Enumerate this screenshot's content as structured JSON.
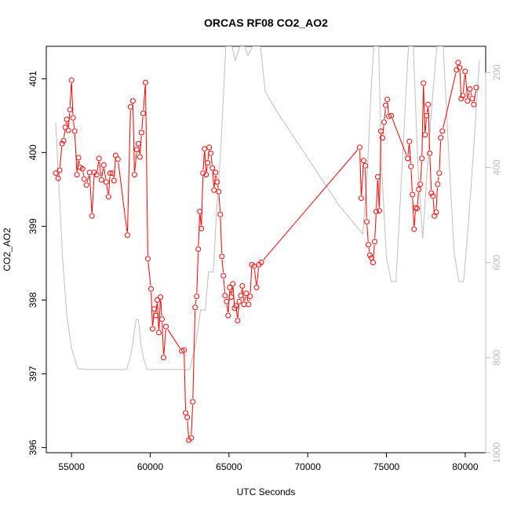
{
  "chart_data": {
    "type": "line",
    "title": "ORCAS RF08 CO2_AO2",
    "xlabel": "UTC Seconds",
    "ylabel": "CO2_AO2",
    "xlim": [
      53400,
      81300
    ],
    "ylim": [
      395.93,
      401.44
    ],
    "y2lim": [
      1000,
      145
    ],
    "x_ticks": [
      "55000",
      "60000",
      "65000",
      "70000",
      "75000",
      "80000"
    ],
    "y_ticks": [
      "396",
      "397",
      "398",
      "399",
      "400",
      "401"
    ],
    "y2_ticks": [
      "200",
      "400",
      "600",
      "800",
      "1000"
    ],
    "grid": false,
    "colors": {
      "series": "#ff0000",
      "secondary": "#bebebe"
    },
    "series": [
      {
        "values": [
          [
            54000,
            399.72
          ],
          [
            54150,
            399.65
          ],
          [
            54250,
            399.76
          ],
          [
            54400,
            400.12
          ],
          [
            54500,
            400.16
          ],
          [
            54600,
            400.34
          ],
          [
            54700,
            400.45
          ],
          [
            54800,
            400.3
          ],
          [
            54900,
            400.58
          ],
          [
            55000,
            400.98
          ],
          [
            55100,
            400.47
          ],
          [
            55200,
            400.29
          ],
          [
            55350,
            399.7
          ],
          [
            55450,
            399.93
          ],
          [
            55550,
            399.8
          ],
          [
            55700,
            399.78
          ],
          [
            55800,
            399.64
          ],
          [
            55950,
            399.56
          ],
          [
            56150,
            399.73
          ],
          [
            56300,
            399.14
          ],
          [
            56450,
            399.73
          ],
          [
            56600,
            399.7
          ],
          [
            56750,
            399.92
          ],
          [
            56900,
            399.63
          ],
          [
            57050,
            399.83
          ],
          [
            57200,
            399.6
          ],
          [
            57350,
            399.4
          ],
          [
            57450,
            399.72
          ],
          [
            57600,
            399.72
          ],
          [
            57700,
            399.62
          ],
          [
            57800,
            399.96
          ],
          [
            57950,
            399.91
          ],
          [
            58550,
            398.88
          ],
          [
            58750,
            400.62
          ],
          [
            58900,
            400.7
          ],
          [
            59000,
            399.7
          ],
          [
            59150,
            400.04
          ],
          [
            59250,
            400.12
          ],
          [
            59350,
            399.94
          ],
          [
            59450,
            400.27
          ],
          [
            59550,
            400.53
          ],
          [
            59700,
            400.95
          ],
          [
            59850,
            398.56
          ],
          [
            60050,
            398.15
          ],
          [
            60150,
            397.61
          ],
          [
            60250,
            397.88
          ],
          [
            60350,
            397.79
          ],
          [
            60450,
            398.0
          ],
          [
            60550,
            397.56
          ],
          [
            60650,
            398.04
          ],
          [
            60750,
            397.74
          ],
          [
            60850,
            397.22
          ],
          [
            61000,
            397.64
          ],
          [
            62000,
            397.31
          ],
          [
            62150,
            397.32
          ],
          [
            62250,
            396.47
          ],
          [
            62350,
            396.41
          ],
          [
            62450,
            396.1
          ],
          [
            62600,
            396.13
          ],
          [
            62700,
            396.62
          ],
          [
            62850,
            397.9
          ],
          [
            62950,
            398.05
          ],
          [
            63050,
            398.69
          ],
          [
            63150,
            399.2
          ],
          [
            63250,
            398.97
          ],
          [
            63350,
            399.72
          ],
          [
            63450,
            400.05
          ],
          [
            63550,
            399.7
          ],
          [
            63650,
            399.86
          ],
          [
            63750,
            400.07
          ],
          [
            63850,
            399.99
          ],
          [
            63950,
            399.79
          ],
          [
            64050,
            399.49
          ],
          [
            64150,
            399.73
          ],
          [
            64250,
            399.6
          ],
          [
            64350,
            399.47
          ],
          [
            64450,
            399.16
          ],
          [
            64550,
            398.59
          ],
          [
            64650,
            398.33
          ],
          [
            64750,
            398.06
          ],
          [
            64850,
            397.98
          ],
          [
            64950,
            397.79
          ],
          [
            65050,
            398.17
          ],
          [
            65150,
            398.04
          ],
          [
            65250,
            398.22
          ],
          [
            65350,
            397.89
          ],
          [
            65450,
            397.92
          ],
          [
            65550,
            397.72
          ],
          [
            65650,
            397.98
          ],
          [
            65750,
            398.06
          ],
          [
            65850,
            398.19
          ],
          [
            65950,
            397.94
          ],
          [
            66100,
            398.09
          ],
          [
            66250,
            397.94
          ],
          [
            66350,
            398.05
          ],
          [
            66450,
            398.48
          ],
          [
            66600,
            398.46
          ],
          [
            66750,
            398.17
          ],
          [
            66900,
            398.48
          ],
          [
            67050,
            398.51
          ],
          [
            73300,
            400.07
          ],
          [
            73400,
            399.38
          ],
          [
            73550,
            399.89
          ],
          [
            73650,
            399.82
          ],
          [
            73750,
            399.06
          ],
          [
            73850,
            398.75
          ],
          [
            73950,
            398.61
          ],
          [
            74050,
            398.57
          ],
          [
            74150,
            398.51
          ],
          [
            74250,
            398.79
          ],
          [
            74350,
            399.2
          ],
          [
            74450,
            399.67
          ],
          [
            74550,
            399.21
          ],
          [
            74650,
            400.29
          ],
          [
            74750,
            400.2
          ],
          [
            74850,
            400.41
          ],
          [
            74950,
            400.64
          ],
          [
            75050,
            400.72
          ],
          [
            75150,
            400.49
          ],
          [
            75300,
            400.5
          ],
          [
            76350,
            399.92
          ],
          [
            76450,
            400.15
          ],
          [
            76550,
            399.81
          ],
          [
            76650,
            399.43
          ],
          [
            76750,
            398.96
          ],
          [
            76850,
            399.25
          ],
          [
            76950,
            399.24
          ],
          [
            77050,
            399.5
          ],
          [
            77150,
            399.57
          ],
          [
            77250,
            399.92
          ],
          [
            77350,
            400.94
          ],
          [
            77450,
            400.24
          ],
          [
            77550,
            400.5
          ],
          [
            77650,
            400.65
          ],
          [
            77750,
            399.99
          ],
          [
            77850,
            399.45
          ],
          [
            77950,
            399.41
          ],
          [
            78050,
            399.14
          ],
          [
            78150,
            399.19
          ],
          [
            78250,
            399.57
          ],
          [
            78350,
            399.72
          ],
          [
            78450,
            400.2
          ],
          [
            78550,
            400.29
          ],
          [
            79450,
            401.12
          ],
          [
            79550,
            401.22
          ],
          [
            79650,
            401.15
          ],
          [
            79750,
            400.73
          ],
          [
            79850,
            400.77
          ],
          [
            80000,
            401.1
          ],
          [
            80150,
            400.7
          ],
          [
            80300,
            400.86
          ],
          [
            80450,
            400.73
          ],
          [
            80550,
            400.65
          ],
          [
            80700,
            400.88
          ]
        ]
      },
      {
        "axis": "secondary",
        "values": [
          [
            54000,
            305
          ],
          [
            54200,
            440
          ],
          [
            54450,
            600
          ],
          [
            54700,
            710
          ],
          [
            55000,
            780
          ],
          [
            55400,
            823
          ],
          [
            56000,
            825
          ],
          [
            57000,
            825
          ],
          [
            58000,
            825
          ],
          [
            58500,
            825
          ],
          [
            58800,
            790
          ],
          [
            59100,
            720
          ],
          [
            59250,
            720
          ],
          [
            59400,
            770
          ],
          [
            59600,
            805
          ],
          [
            59800,
            825
          ],
          [
            60200,
            825
          ],
          [
            60800,
            825
          ],
          [
            61400,
            825
          ],
          [
            62000,
            825
          ],
          [
            62500,
            825
          ],
          [
            62900,
            770
          ],
          [
            63200,
            700
          ],
          [
            63500,
            700
          ],
          [
            63700,
            620
          ],
          [
            64000,
            620
          ],
          [
            64200,
            500
          ],
          [
            64500,
            350
          ],
          [
            64800,
            145
          ],
          [
            65200,
            145
          ],
          [
            65400,
            175
          ],
          [
            65700,
            145
          ],
          [
            66000,
            145
          ],
          [
            66200,
            165
          ],
          [
            66500,
            145
          ],
          [
            66700,
            145
          ],
          [
            66900,
            145
          ],
          [
            67000,
            145
          ],
          [
            67300,
            240
          ],
          [
            68000,
            280
          ],
          [
            69000,
            330
          ],
          [
            70000,
            380
          ],
          [
            71000,
            430
          ],
          [
            72000,
            480
          ],
          [
            73000,
            520
          ],
          [
            73500,
            540
          ],
          [
            73800,
            400
          ],
          [
            74000,
            250
          ],
          [
            74200,
            145
          ],
          [
            74500,
            145
          ],
          [
            74700,
            400
          ],
          [
            75000,
            590
          ],
          [
            75300,
            640
          ],
          [
            75600,
            640
          ],
          [
            75800,
            520
          ],
          [
            76100,
            330
          ],
          [
            76400,
            145
          ],
          [
            76700,
            145
          ],
          [
            77000,
            400
          ],
          [
            77300,
            550
          ],
          [
            77600,
            400
          ],
          [
            77900,
            260
          ],
          [
            78200,
            145
          ],
          [
            78600,
            145
          ],
          [
            79000,
            400
          ],
          [
            79300,
            580
          ],
          [
            79600,
            640
          ],
          [
            79900,
            640
          ],
          [
            80200,
            520
          ],
          [
            80500,
            380
          ],
          [
            80900,
            175
          ]
        ]
      }
    ]
  }
}
